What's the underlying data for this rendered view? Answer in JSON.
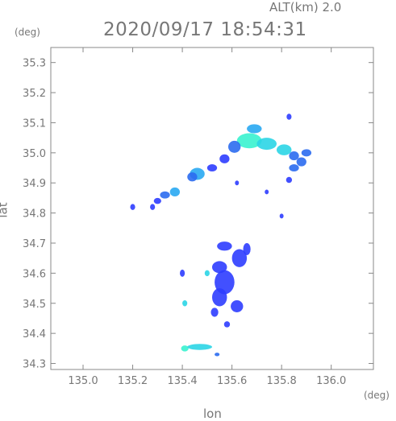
{
  "chart_data": {
    "type": "heatmap",
    "header": "ALT(km)  2.0",
    "title": "2020/09/17 18:54:31",
    "xlabel": "lon",
    "ylabel": "lat",
    "x_unit": "(deg)",
    "y_unit": "(deg)",
    "xlim": [
      134.87,
      136.17
    ],
    "ylim": [
      34.28,
      35.35
    ],
    "x_ticks": [
      "135.0",
      "135.2",
      "135.4",
      "135.6",
      "135.8",
      "136.0"
    ],
    "y_ticks": [
      "34.3",
      "34.4",
      "34.5",
      "34.6",
      "34.7",
      "34.8",
      "34.9",
      "35.0",
      "35.1",
      "35.2",
      "35.3"
    ],
    "grid": false,
    "echo_colors": [
      "#2e3dff",
      "#2b6bf0",
      "#29a9f2",
      "#2bd5e6",
      "#38f2cf"
    ],
    "echoes": [
      {
        "lon": 135.67,
        "lat": 35.04,
        "rx": 0.05,
        "ry": 0.025,
        "level": 4
      },
      {
        "lon": 135.74,
        "lat": 35.03,
        "rx": 0.04,
        "ry": 0.02,
        "level": 3
      },
      {
        "lon": 135.69,
        "lat": 35.08,
        "rx": 0.03,
        "ry": 0.015,
        "level": 2
      },
      {
        "lon": 135.81,
        "lat": 35.01,
        "rx": 0.03,
        "ry": 0.018,
        "level": 3
      },
      {
        "lon": 135.85,
        "lat": 34.99,
        "rx": 0.02,
        "ry": 0.015,
        "level": 1
      },
      {
        "lon": 135.9,
        "lat": 35.0,
        "rx": 0.02,
        "ry": 0.012,
        "level": 1
      },
      {
        "lon": 135.88,
        "lat": 34.97,
        "rx": 0.02,
        "ry": 0.015,
        "level": 1
      },
      {
        "lon": 135.85,
        "lat": 34.95,
        "rx": 0.02,
        "ry": 0.012,
        "level": 1
      },
      {
        "lon": 135.83,
        "lat": 35.12,
        "rx": 0.01,
        "ry": 0.01,
        "level": 0
      },
      {
        "lon": 135.61,
        "lat": 35.02,
        "rx": 0.025,
        "ry": 0.02,
        "level": 1
      },
      {
        "lon": 135.57,
        "lat": 34.98,
        "rx": 0.02,
        "ry": 0.015,
        "level": 0
      },
      {
        "lon": 135.46,
        "lat": 34.93,
        "rx": 0.03,
        "ry": 0.02,
        "level": 2
      },
      {
        "lon": 135.44,
        "lat": 34.92,
        "rx": 0.02,
        "ry": 0.015,
        "level": 1
      },
      {
        "lon": 135.52,
        "lat": 34.95,
        "rx": 0.02,
        "ry": 0.012,
        "level": 0
      },
      {
        "lon": 135.37,
        "lat": 34.87,
        "rx": 0.02,
        "ry": 0.015,
        "level": 2
      },
      {
        "lon": 135.33,
        "lat": 34.86,
        "rx": 0.02,
        "ry": 0.012,
        "level": 1
      },
      {
        "lon": 135.3,
        "lat": 34.84,
        "rx": 0.015,
        "ry": 0.01,
        "level": 0
      },
      {
        "lon": 135.28,
        "lat": 34.82,
        "rx": 0.01,
        "ry": 0.01,
        "level": 0
      },
      {
        "lon": 135.57,
        "lat": 34.69,
        "rx": 0.03,
        "ry": 0.015,
        "level": 0
      },
      {
        "lon": 135.66,
        "lat": 34.68,
        "rx": 0.015,
        "ry": 0.02,
        "level": 0
      },
      {
        "lon": 135.63,
        "lat": 34.65,
        "rx": 0.03,
        "ry": 0.03,
        "level": 0
      },
      {
        "lon": 135.55,
        "lat": 34.62,
        "rx": 0.03,
        "ry": 0.02,
        "level": 0
      },
      {
        "lon": 135.57,
        "lat": 34.57,
        "rx": 0.04,
        "ry": 0.04,
        "level": 0
      },
      {
        "lon": 135.55,
        "lat": 34.52,
        "rx": 0.03,
        "ry": 0.03,
        "level": 0
      },
      {
        "lon": 135.62,
        "lat": 34.49,
        "rx": 0.025,
        "ry": 0.02,
        "level": 0
      },
      {
        "lon": 135.53,
        "lat": 34.47,
        "rx": 0.015,
        "ry": 0.015,
        "level": 0
      },
      {
        "lon": 135.41,
        "lat": 34.5,
        "rx": 0.01,
        "ry": 0.01,
        "level": 3
      },
      {
        "lon": 135.4,
        "lat": 34.6,
        "rx": 0.01,
        "ry": 0.012,
        "level": 0
      },
      {
        "lon": 135.5,
        "lat": 34.6,
        "rx": 0.01,
        "ry": 0.01,
        "level": 3
      },
      {
        "lon": 135.58,
        "lat": 34.43,
        "rx": 0.012,
        "ry": 0.01,
        "level": 0
      },
      {
        "lon": 135.41,
        "lat": 34.35,
        "rx": 0.015,
        "ry": 0.01,
        "level": 4
      },
      {
        "lon": 135.47,
        "lat": 34.355,
        "rx": 0.05,
        "ry": 0.01,
        "level": 3
      },
      {
        "lon": 135.54,
        "lat": 34.33,
        "rx": 0.01,
        "ry": 0.006,
        "level": 1
      },
      {
        "lon": 135.2,
        "lat": 34.82,
        "rx": 0.01,
        "ry": 0.01,
        "level": 0
      },
      {
        "lon": 135.62,
        "lat": 34.9,
        "rx": 0.008,
        "ry": 0.008,
        "level": 0
      },
      {
        "lon": 135.74,
        "lat": 34.87,
        "rx": 0.008,
        "ry": 0.008,
        "level": 0
      },
      {
        "lon": 135.8,
        "lat": 34.79,
        "rx": 0.008,
        "ry": 0.008,
        "level": 0
      },
      {
        "lon": 135.83,
        "lat": 34.91,
        "rx": 0.012,
        "ry": 0.01,
        "level": 0
      }
    ]
  }
}
